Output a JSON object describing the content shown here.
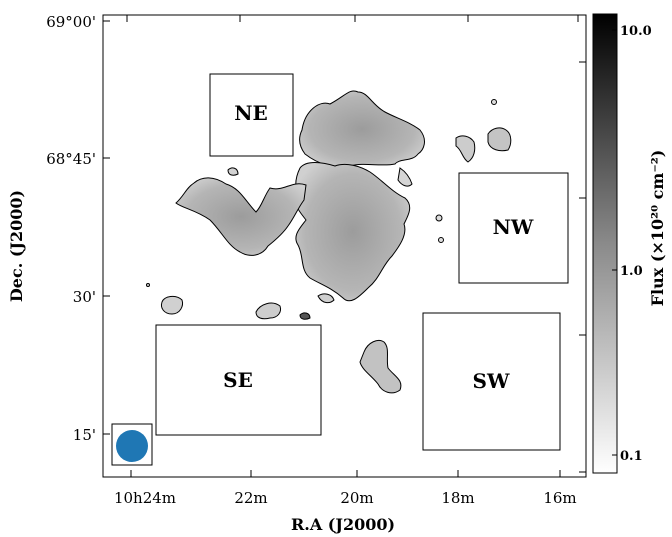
{
  "chart_data": {
    "type": "heatmap",
    "title": "",
    "xlabel": "R.A (J2000)",
    "ylabel": "Dec. (J2000)",
    "x_ticks": [
      "10h24m",
      "22m",
      "20m",
      "18m",
      "16m"
    ],
    "y_ticks": [
      "69°00'",
      "68°45'",
      "30'",
      "15'"
    ],
    "colorbar": {
      "label": "Flux (×10²⁰ cm⁻²)",
      "scale": "log",
      "ticks": [
        "10.0",
        "1.0",
        "0.1"
      ],
      "colors": [
        "#000000",
        "#ffffff"
      ]
    },
    "regions": [
      {
        "label": "NE"
      },
      {
        "label": "NW"
      },
      {
        "label": "SE"
      },
      {
        "label": "SW"
      }
    ],
    "beam": {
      "color": "#1f77b4"
    }
  }
}
